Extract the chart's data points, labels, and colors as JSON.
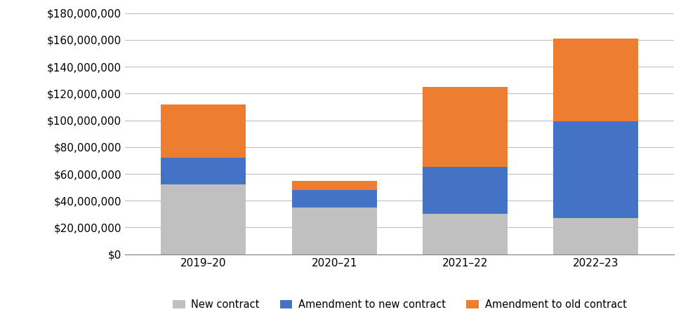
{
  "categories": [
    "2019–20",
    "2020–21",
    "2021–22",
    "2022–23"
  ],
  "new_contract": [
    52000000,
    35000000,
    30000000,
    27000000
  ],
  "amendment_to_new": [
    20000000,
    13000000,
    35000000,
    72000000
  ],
  "amendment_to_old": [
    40000000,
    7000000,
    60000000,
    62000000
  ],
  "color_new_contract": "#c0c0c0",
  "color_amendment_new": "#4472c4",
  "color_amendment_old": "#ed7d31",
  "legend_labels": [
    "New contract",
    "Amendment to new contract",
    "Amendment to old contract"
  ],
  "ylim": [
    0,
    180000000
  ],
  "ytick_step": 20000000,
  "background_color": "#ffffff",
  "grid_color": "#bfbfbf",
  "bar_width": 0.65,
  "title_fontsize": 12,
  "tick_fontsize": 11,
  "legend_fontsize": 10.5
}
